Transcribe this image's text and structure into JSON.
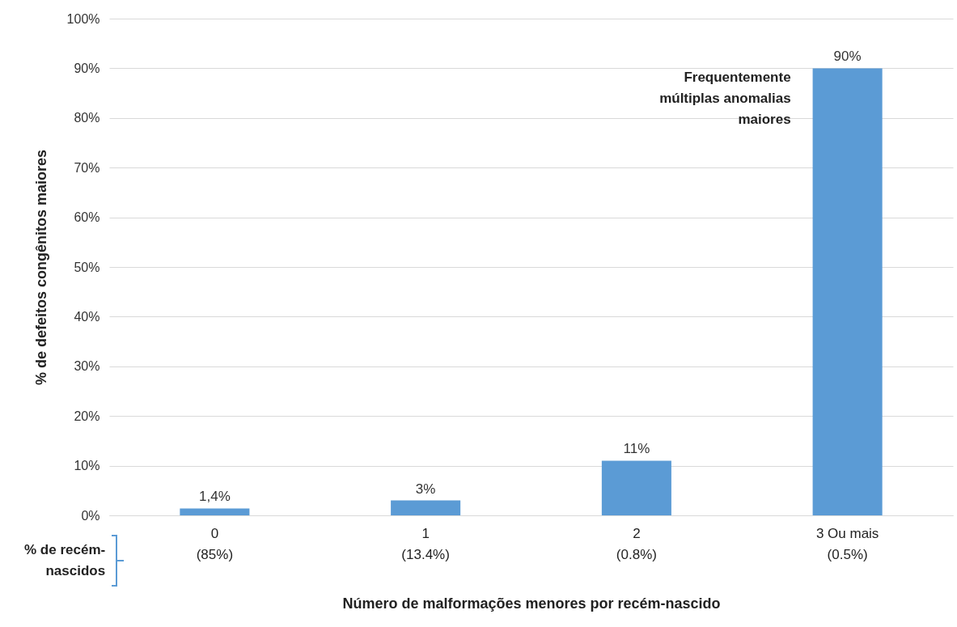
{
  "chart_data": {
    "type": "bar",
    "xlabel": "Número de malformações menores por recém-nascido",
    "ylabel": "% de defeitos congênitos maiores",
    "categories": [
      "0\n(85%)",
      "1\n(13.4%)",
      "2\n(0.8%)",
      "3 Ou mais\n(0.5%)"
    ],
    "values": [
      1.4,
      3,
      11,
      90
    ],
    "color": "#5b9bd5",
    "value_labels": [
      "1,4%",
      "3%",
      "11%",
      "90%"
    ],
    "ylim": [
      0,
      100
    ],
    "yticks": [
      {
        "value": 0,
        "label": "0%"
      },
      {
        "value": 10,
        "label": "10%"
      },
      {
        "value": 20,
        "label": "20%"
      },
      {
        "value": 30,
        "label": "30%"
      },
      {
        "value": 40,
        "label": "40%"
      },
      {
        "value": 50,
        "label": "50%"
      },
      {
        "value": 60,
        "label": "60%"
      },
      {
        "value": 70,
        "label": "70%"
      },
      {
        "value": 80,
        "label": "80%"
      },
      {
        "value": 90,
        "label": "90%"
      },
      {
        "value": 100,
        "label": "100%"
      }
    ],
    "grid": "y",
    "annotations": [
      "Frequentemente\nmúltiplas anomalias\nmaiores",
      "% de recém-\nnascidos"
    ]
  }
}
